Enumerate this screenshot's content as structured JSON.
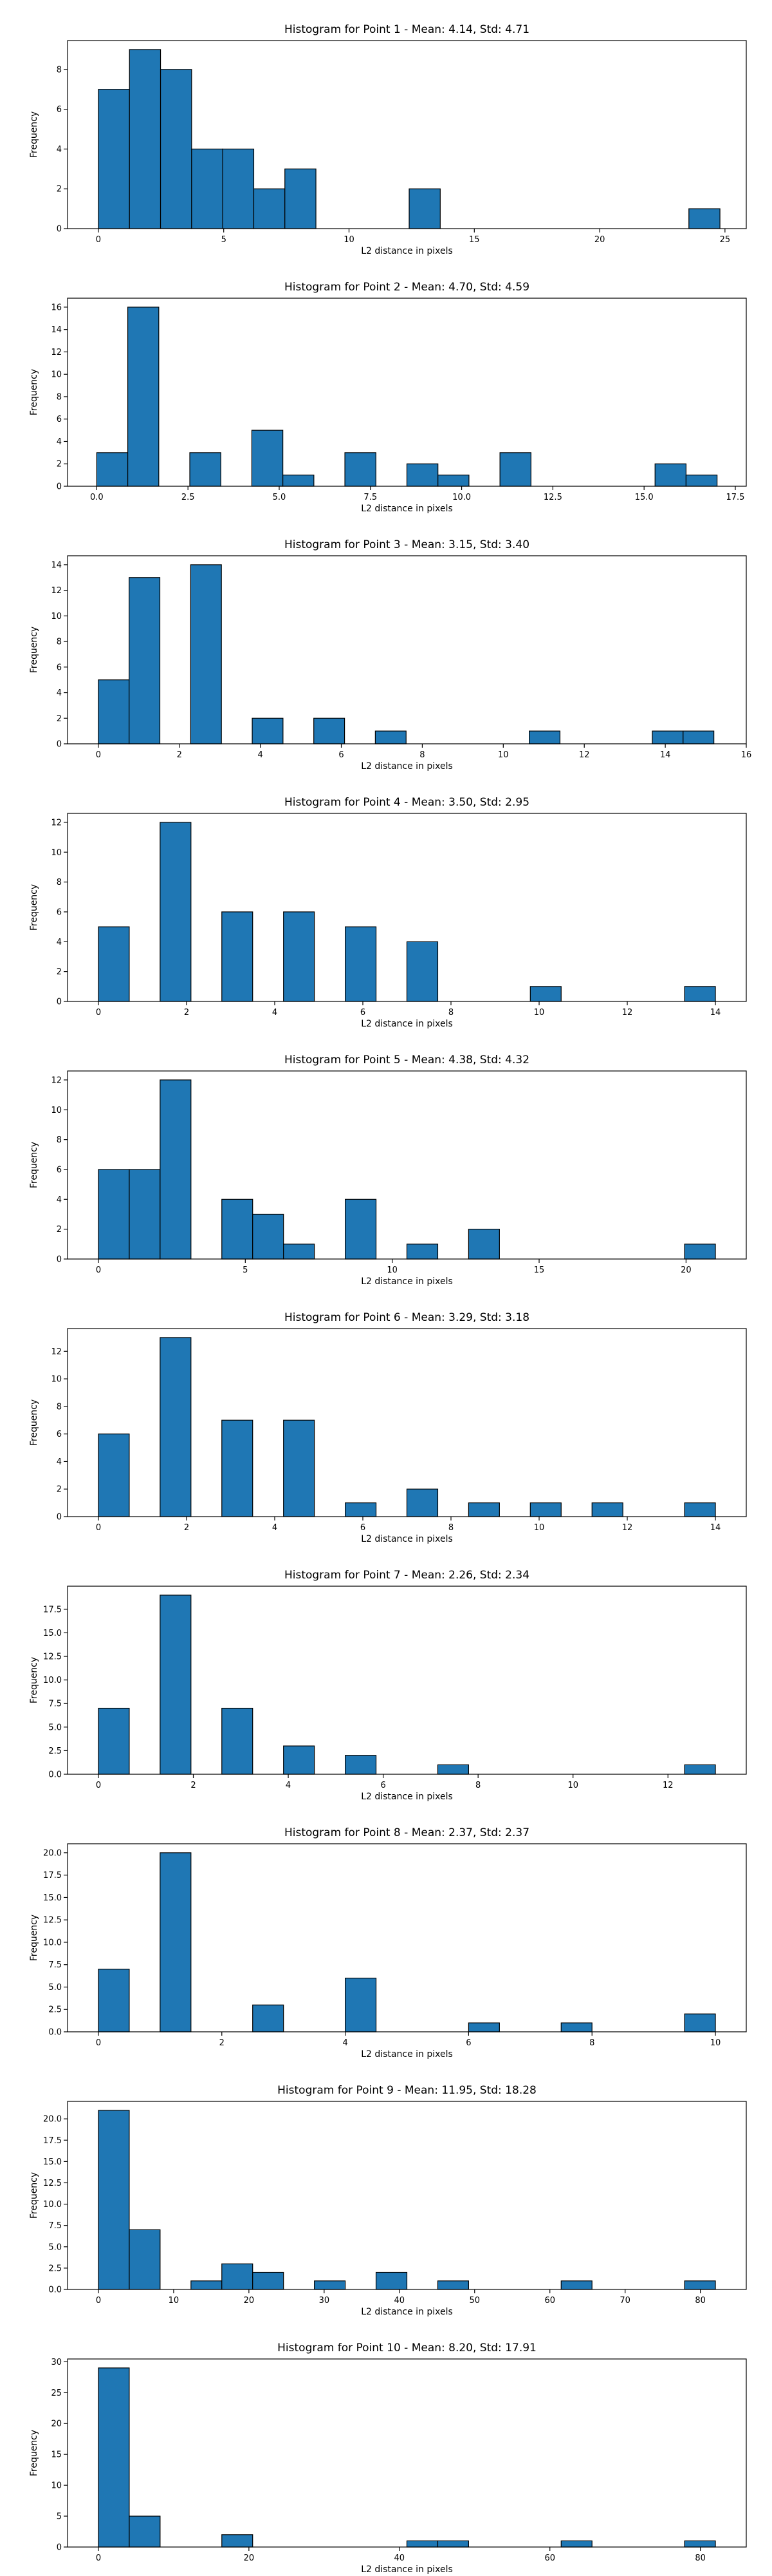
{
  "chart_data": [
    {
      "type": "bar",
      "title": "Histogram for Point 1 - Mean: 4.14, Std: 4.71",
      "xlabel": "L2 distance in pixels",
      "ylabel": "Frequency",
      "xlim": [
        -1.23,
        25.85
      ],
      "ylim": [
        0,
        9.45
      ],
      "xticks": [
        0,
        5,
        10,
        15,
        20,
        25
      ],
      "xtick_labels": [
        "0",
        "5",
        "10",
        "15",
        "20",
        "25"
      ],
      "yticks": [
        0,
        2,
        4,
        6,
        8
      ],
      "ytick_labels": [
        "0",
        "2",
        "4",
        "6",
        "8"
      ],
      "bin_edges": [
        0.0,
        1.24,
        2.48,
        3.72,
        4.96,
        6.2,
        7.44,
        8.68,
        9.92,
        11.16,
        12.4,
        13.64,
        14.88,
        16.12,
        17.36,
        18.6,
        19.84,
        21.08,
        22.32,
        23.56,
        24.8
      ],
      "values": [
        7,
        9,
        8,
        4,
        4,
        2,
        3,
        0,
        0,
        0,
        2,
        0,
        0,
        0,
        0,
        0,
        0,
        0,
        0,
        1
      ]
    },
    {
      "type": "bar",
      "title": "Histogram for Point 2 - Mean: 4.70, Std: 4.59",
      "xlabel": "L2 distance in pixels",
      "ylabel": "Frequency",
      "xlim": [
        -0.8,
        17.8
      ],
      "ylim": [
        0,
        16.8
      ],
      "xticks": [
        0,
        2.5,
        5,
        7.5,
        10,
        12.5,
        15,
        17.5
      ],
      "xtick_labels": [
        "0.0",
        "2.5",
        "5.0",
        "7.5",
        "10.0",
        "12.5",
        "15.0",
        "17.5"
      ],
      "yticks": [
        0,
        2,
        4,
        6,
        8,
        10,
        12,
        14,
        16
      ],
      "ytick_labels": [
        "0",
        "2",
        "4",
        "6",
        "8",
        "10",
        "12",
        "14",
        "16"
      ],
      "bin_edges": [
        0.0,
        0.85,
        1.7,
        2.55,
        3.4,
        4.25,
        5.1,
        5.95,
        6.8,
        7.65,
        8.5,
        9.35,
        10.2,
        11.05,
        11.9,
        12.75,
        13.6,
        14.45,
        15.3,
        16.15,
        17.0
      ],
      "values": [
        3,
        16,
        0,
        3,
        0,
        5,
        1,
        0,
        3,
        0,
        2,
        1,
        0,
        3,
        0,
        0,
        0,
        0,
        2,
        1
      ]
    },
    {
      "type": "bar",
      "title": "Histogram for Point 3 - Mean: 3.15, Std: 3.40",
      "xlabel": "L2 distance in pixels",
      "ylabel": "Frequency",
      "xlim": [
        -0.76,
        16.0
      ],
      "ylim": [
        0,
        14.7
      ],
      "xticks": [
        0,
        2,
        4,
        6,
        8,
        10,
        12,
        14,
        16
      ],
      "xtick_labels": [
        "0",
        "2",
        "4",
        "6",
        "8",
        "10",
        "12",
        "14",
        "16"
      ],
      "yticks": [
        0,
        2,
        4,
        6,
        8,
        10,
        12,
        14
      ],
      "ytick_labels": [
        "0",
        "2",
        "4",
        "6",
        "8",
        "10",
        "12",
        "14"
      ],
      "bin_edges": [
        0.0,
        0.76,
        1.52,
        2.28,
        3.04,
        3.8,
        4.56,
        5.32,
        6.08,
        6.84,
        7.6,
        8.36,
        9.12,
        9.88,
        10.64,
        11.4,
        12.16,
        12.92,
        13.68,
        14.44,
        15.2
      ],
      "values": [
        5,
        13,
        0,
        14,
        0,
        2,
        0,
        2,
        0,
        1,
        0,
        0,
        0,
        0,
        1,
        0,
        0,
        0,
        1,
        1
      ]
    },
    {
      "type": "bar",
      "title": "Histogram for Point 4 - Mean: 3.50, Std: 2.95",
      "xlabel": "L2 distance in pixels",
      "ylabel": "Frequency",
      "xlim": [
        -0.7,
        14.7
      ],
      "ylim": [
        0,
        12.6
      ],
      "xticks": [
        0,
        2,
        4,
        6,
        8,
        10,
        12,
        14
      ],
      "xtick_labels": [
        "0",
        "2",
        "4",
        "6",
        "8",
        "10",
        "12",
        "14"
      ],
      "yticks": [
        0,
        2,
        4,
        6,
        8,
        10,
        12
      ],
      "ytick_labels": [
        "0",
        "2",
        "4",
        "6",
        "8",
        "10",
        "12"
      ],
      "bin_edges": [
        0.0,
        0.7,
        1.4,
        2.1,
        2.8,
        3.5,
        4.2,
        4.9,
        5.6,
        6.3,
        7.0,
        7.7,
        8.4,
        9.1,
        9.8,
        10.5,
        11.2,
        11.9,
        12.6,
        13.3,
        14.0
      ],
      "values": [
        5,
        0,
        12,
        0,
        6,
        0,
        6,
        0,
        5,
        0,
        4,
        0,
        0,
        0,
        1,
        0,
        0,
        0,
        0,
        1
      ]
    },
    {
      "type": "bar",
      "title": "Histogram for Point 5 - Mean: 4.38, Std: 4.32",
      "xlabel": "L2 distance in pixels",
      "ylabel": "Frequency",
      "xlim": [
        -1.05,
        22.05
      ],
      "ylim": [
        0,
        12.6
      ],
      "xticks": [
        0,
        5,
        10,
        15,
        20
      ],
      "xtick_labels": [
        "0",
        "5",
        "10",
        "15",
        "20"
      ],
      "yticks": [
        0,
        2,
        4,
        6,
        8,
        10,
        12
      ],
      "ytick_labels": [
        "0",
        "2",
        "4",
        "6",
        "8",
        "10",
        "12"
      ],
      "bin_edges": [
        0.0,
        1.05,
        2.1,
        3.15,
        4.2,
        5.25,
        6.3,
        7.35,
        8.4,
        9.45,
        10.5,
        11.55,
        12.6,
        13.65,
        14.7,
        15.75,
        16.8,
        17.85,
        18.9,
        19.95,
        21.0
      ],
      "values": [
        6,
        6,
        12,
        0,
        4,
        3,
        1,
        0,
        4,
        0,
        1,
        0,
        2,
        0,
        0,
        0,
        0,
        0,
        0,
        1
      ]
    },
    {
      "type": "bar",
      "title": "Histogram for Point 6 - Mean: 3.29, Std: 3.18",
      "xlabel": "L2 distance in pixels",
      "ylabel": "Frequency",
      "xlim": [
        -0.7,
        14.7
      ],
      "ylim": [
        0,
        13.65
      ],
      "xticks": [
        0,
        2,
        4,
        6,
        8,
        10,
        12,
        14
      ],
      "xtick_labels": [
        "0",
        "2",
        "4",
        "6",
        "8",
        "10",
        "12",
        "14"
      ],
      "yticks": [
        0,
        2,
        4,
        6,
        8,
        10,
        12
      ],
      "ytick_labels": [
        "0",
        "2",
        "4",
        "6",
        "8",
        "10",
        "12"
      ],
      "bin_edges": [
        0.0,
        0.7,
        1.4,
        2.1,
        2.8,
        3.5,
        4.2,
        4.9,
        5.6,
        6.3,
        7.0,
        7.7,
        8.4,
        9.1,
        9.8,
        10.5,
        11.2,
        11.9,
        12.6,
        13.3,
        14.0
      ],
      "values": [
        6,
        0,
        13,
        0,
        7,
        0,
        7,
        0,
        1,
        0,
        2,
        0,
        1,
        0,
        1,
        0,
        1,
        0,
        0,
        1
      ]
    },
    {
      "type": "bar",
      "title": "Histogram for Point 7 - Mean: 2.26, Std: 2.34",
      "xlabel": "L2 distance in pixels",
      "ylabel": "Frequency",
      "xlim": [
        -0.65,
        13.65
      ],
      "ylim": [
        0,
        19.95
      ],
      "xticks": [
        0,
        2,
        4,
        6,
        8,
        10,
        12
      ],
      "xtick_labels": [
        "0",
        "2",
        "4",
        "6",
        "8",
        "10",
        "12"
      ],
      "yticks": [
        0,
        2.5,
        5,
        7.5,
        10,
        12.5,
        15,
        17.5
      ],
      "ytick_labels": [
        "0.0",
        "2.5",
        "5.0",
        "7.5",
        "10.0",
        "12.5",
        "15.0",
        "17.5"
      ],
      "bin_edges": [
        0.0,
        0.65,
        1.3,
        1.95,
        2.6,
        3.25,
        3.9,
        4.55,
        5.2,
        5.85,
        6.5,
        7.15,
        7.8,
        8.45,
        9.1,
        9.75,
        10.4,
        11.05,
        11.7,
        12.35,
        13.0
      ],
      "values": [
        7,
        0,
        19,
        0,
        7,
        0,
        3,
        0,
        2,
        0,
        0,
        1,
        0,
        0,
        0,
        0,
        0,
        0,
        0,
        1
      ]
    },
    {
      "type": "bar",
      "title": "Histogram for Point 8 - Mean: 2.37, Std: 2.37",
      "xlabel": "L2 distance in pixels",
      "ylabel": "Frequency",
      "xlim": [
        -0.5,
        10.5
      ],
      "ylim": [
        0,
        21.0
      ],
      "xticks": [
        0,
        2,
        4,
        6,
        8,
        10
      ],
      "xtick_labels": [
        "0",
        "2",
        "4",
        "6",
        "8",
        "10"
      ],
      "yticks": [
        0,
        2.5,
        5,
        7.5,
        10,
        12.5,
        15,
        17.5,
        20
      ],
      "ytick_labels": [
        "0.0",
        "2.5",
        "5.0",
        "7.5",
        "10.0",
        "12.5",
        "15.0",
        "17.5",
        "20.0"
      ],
      "bin_edges": [
        0.0,
        0.5,
        1.0,
        1.5,
        2.0,
        2.5,
        3.0,
        3.5,
        4.0,
        4.5,
        5.0,
        5.5,
        6.0,
        6.5,
        7.0,
        7.5,
        8.0,
        8.5,
        9.0,
        9.5,
        10.0
      ],
      "values": [
        7,
        0,
        20,
        0,
        0,
        3,
        0,
        0,
        6,
        0,
        0,
        0,
        1,
        0,
        0,
        1,
        0,
        0,
        0,
        2
      ]
    },
    {
      "type": "bar",
      "title": "Histogram for Point 9 - Mean: 11.95, Std: 18.28",
      "xlabel": "L2 distance in pixels",
      "ylabel": "Frequency",
      "xlim": [
        -4.1,
        86.1
      ],
      "ylim": [
        0,
        22.05
      ],
      "xticks": [
        0,
        10,
        20,
        30,
        40,
        50,
        60,
        70,
        80
      ],
      "xtick_labels": [
        "0",
        "10",
        "20",
        "30",
        "40",
        "50",
        "60",
        "70",
        "80"
      ],
      "yticks": [
        0,
        2.5,
        5,
        7.5,
        10,
        12.5,
        15,
        17.5,
        20
      ],
      "ytick_labels": [
        "0.0",
        "2.5",
        "5.0",
        "7.5",
        "10.0",
        "12.5",
        "15.0",
        "17.5",
        "20.0"
      ],
      "bin_edges": [
        0.0,
        4.1,
        8.2,
        12.3,
        16.4,
        20.5,
        24.6,
        28.7,
        32.8,
        36.9,
        41.0,
        45.1,
        49.2,
        53.3,
        57.4,
        61.5,
        65.6,
        69.7,
        73.8,
        77.9,
        82.0
      ],
      "values": [
        21,
        7,
        0,
        1,
        3,
        2,
        0,
        1,
        0,
        2,
        0,
        1,
        0,
        0,
        0,
        1,
        0,
        0,
        0,
        1
      ]
    },
    {
      "type": "bar",
      "title": "Histogram for Point 10 - Mean: 8.20, Std: 17.91",
      "xlabel": "L2 distance in pixels",
      "ylabel": "Frequency",
      "xlim": [
        -4.1,
        86.1
      ],
      "ylim": [
        0,
        30.45
      ],
      "xticks": [
        0,
        20,
        40,
        60,
        80
      ],
      "xtick_labels": [
        "0",
        "20",
        "40",
        "60",
        "80"
      ],
      "yticks": [
        0,
        5,
        10,
        15,
        20,
        25,
        30
      ],
      "ytick_labels": [
        "0",
        "5",
        "10",
        "15",
        "20",
        "25",
        "30"
      ],
      "bin_edges": [
        0.0,
        4.1,
        8.2,
        12.3,
        16.4,
        20.5,
        24.6,
        28.7,
        32.8,
        36.9,
        41.0,
        45.1,
        49.2,
        53.3,
        57.4,
        61.5,
        65.6,
        69.7,
        73.8,
        77.9,
        82.0
      ],
      "values": [
        29,
        5,
        0,
        0,
        2,
        0,
        0,
        0,
        0,
        0,
        1,
        1,
        0,
        0,
        0,
        1,
        0,
        0,
        0,
        1
      ]
    }
  ]
}
